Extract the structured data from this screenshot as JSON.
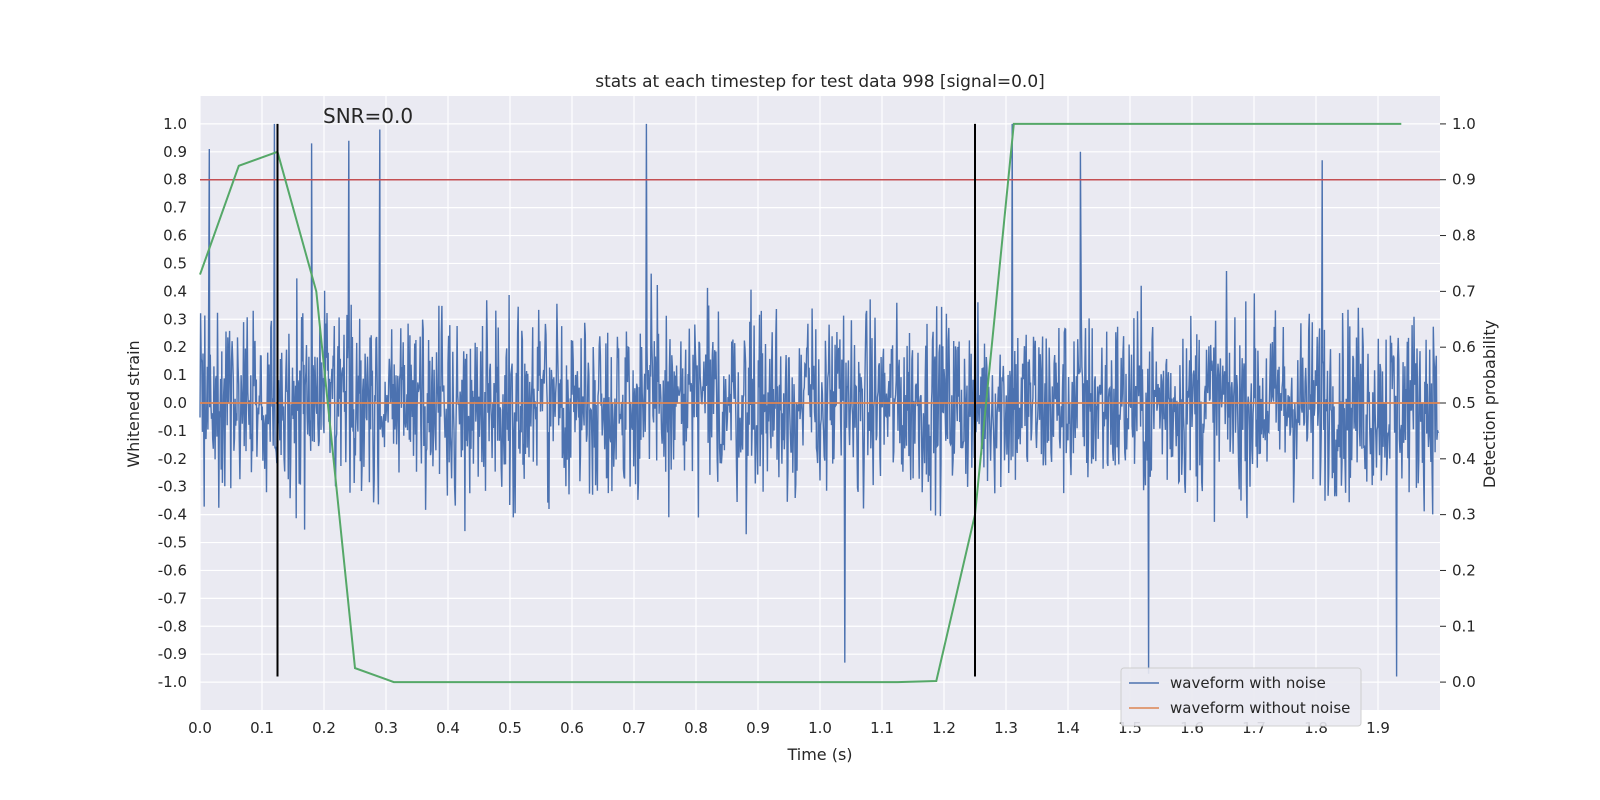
{
  "chart_data": {
    "type": "line",
    "title": "stats at each timestep for test data 998 [signal=0.0]",
    "xlabel": "Time (s)",
    "ylabel": "Whitened strain",
    "y2label": "Detection probability",
    "xlim": [
      0.0,
      2.0
    ],
    "ylim": [
      -1.1,
      1.1
    ],
    "y2lim": [
      -0.05,
      1.05
    ],
    "xticks": [
      0.0,
      0.1,
      0.2,
      0.3,
      0.4,
      0.5,
      0.6,
      0.7,
      0.8,
      0.9,
      1.0,
      1.1,
      1.2,
      1.3,
      1.4,
      1.5,
      1.6,
      1.7,
      1.8,
      1.9
    ],
    "yticks": [
      -1.0,
      -0.9,
      -0.8,
      -0.7,
      -0.6,
      -0.5,
      -0.4,
      -0.3,
      -0.2,
      -0.1,
      0.0,
      0.1,
      0.2,
      0.3,
      0.4,
      0.5,
      0.6,
      0.7,
      0.8,
      0.9,
      1.0
    ],
    "y2ticks": [
      0.0,
      0.1,
      0.2,
      0.3,
      0.4,
      0.5,
      0.6,
      0.7,
      0.8,
      0.9,
      1.0
    ],
    "grid": true,
    "legend_position": "lower-right",
    "annotation": "SNR=0.0",
    "colors": {
      "noise": "#4c72b0",
      "clean": "#dd8452",
      "prob": "#55a868",
      "threshold": "#c44e52",
      "vline": "#000000",
      "background": "#eaeaf2"
    },
    "series": [
      {
        "name": "waveform with noise",
        "description": "dense random noise, amplitude roughly within -1 to 1, sampled across 0-2 s",
        "peaks": [
          {
            "x": 0.015,
            "y": 0.91
          },
          {
            "x": 0.12,
            "y": 1.0
          },
          {
            "x": 0.18,
            "y": 0.93
          },
          {
            "x": 0.24,
            "y": 0.94
          },
          {
            "x": 0.29,
            "y": 0.98
          },
          {
            "x": 0.72,
            "y": 1.0
          },
          {
            "x": 1.31,
            "y": 1.0
          },
          {
            "x": 1.42,
            "y": 0.9
          },
          {
            "x": 1.81,
            "y": 0.87
          },
          {
            "x": 1.04,
            "y": -0.93
          },
          {
            "x": 1.53,
            "y": -0.97
          },
          {
            "x": 1.93,
            "y": -0.98
          }
        ]
      },
      {
        "name": "waveform without noise",
        "x": [
          0.0,
          2.0
        ],
        "y": [
          0.0,
          0.0
        ]
      },
      {
        "name": "Detection probability",
        "axis": "right",
        "x": [
          0.0,
          0.0625,
          0.125,
          0.1875,
          0.25,
          0.3125,
          0.375,
          1.125,
          1.1875,
          1.25,
          1.3125,
          1.375,
          1.9375
        ],
        "y": [
          0.73,
          0.925,
          0.95,
          0.7,
          0.025,
          0.0,
          0.0,
          0.0,
          0.002,
          0.3,
          1.0,
          1.0,
          1.0
        ]
      }
    ],
    "hlines": [
      {
        "axis": "left",
        "y": 0.8
      }
    ],
    "vlines": [
      {
        "x": 0.125,
        "ymin": -0.98,
        "ymax": 1.0
      },
      {
        "x": 1.25,
        "ymin": -0.98,
        "ymax": 1.0
      }
    ]
  }
}
